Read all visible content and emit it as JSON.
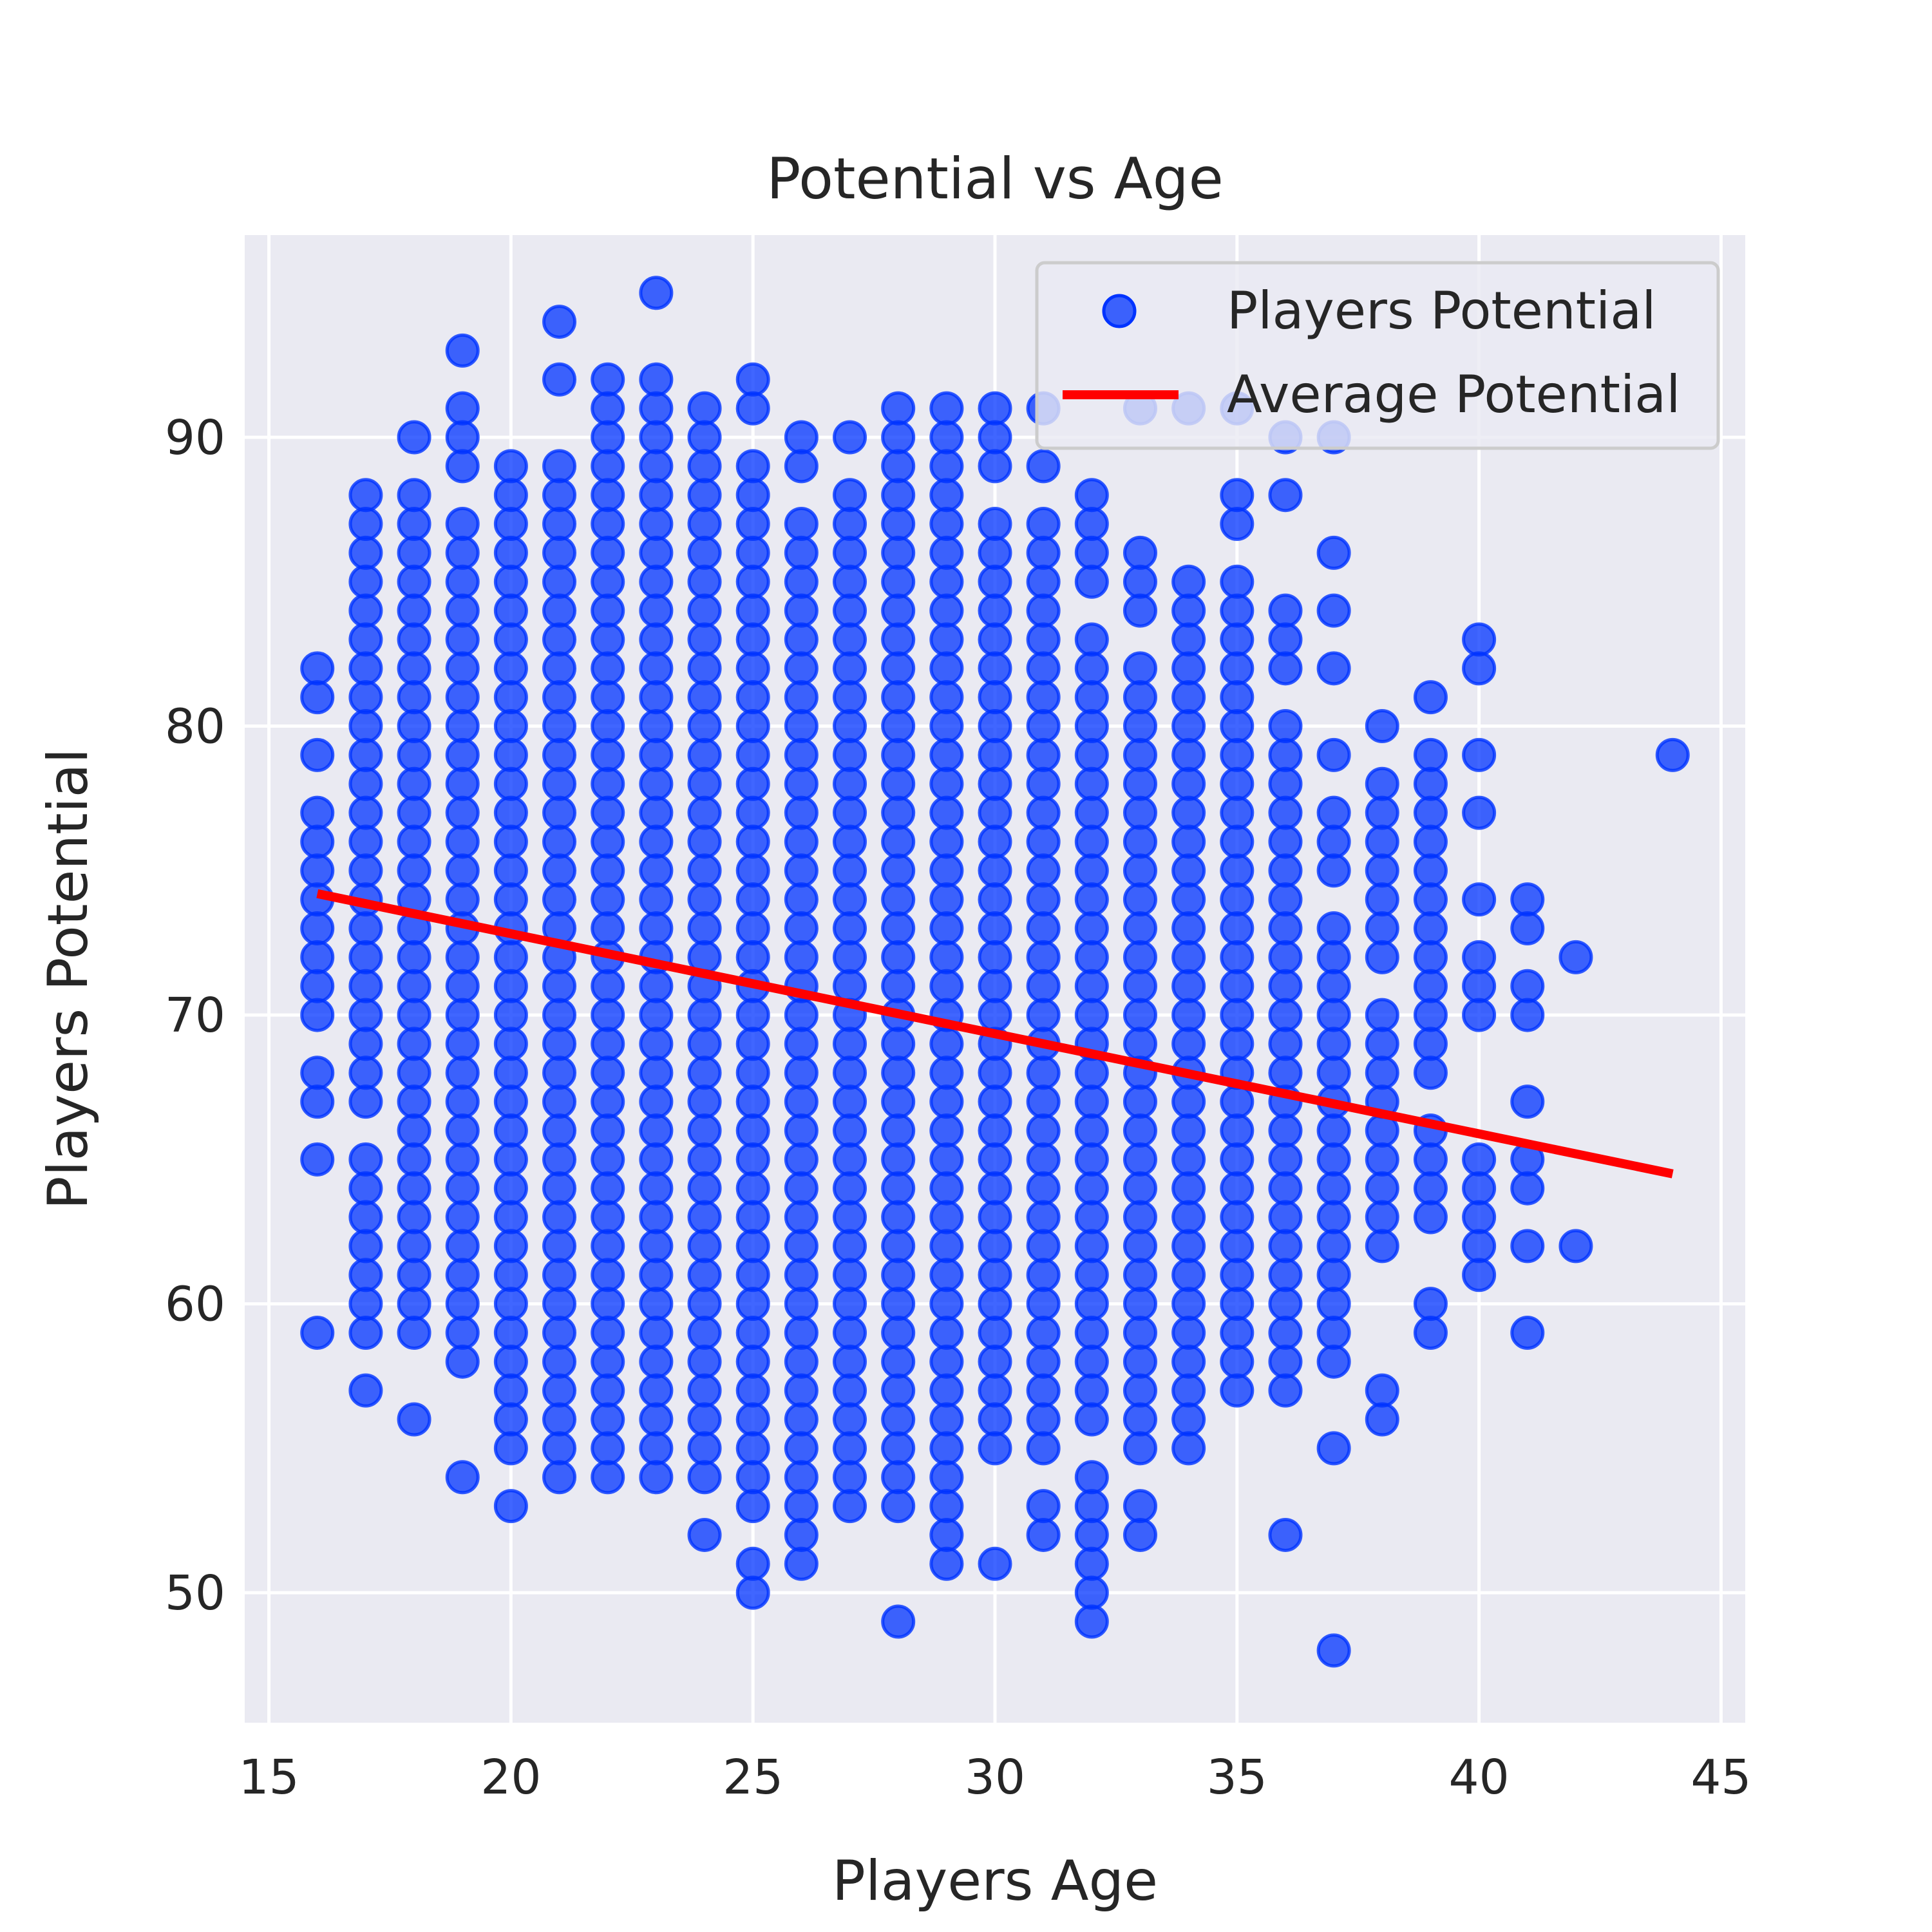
{
  "chart_data": {
    "type": "scatter",
    "title": "Potential vs Age",
    "xlabel": "Players Age",
    "ylabel": "Players Potential",
    "xlim": [
      14.5,
      45.5
    ],
    "ylim": [
      45.5,
      97
    ],
    "xticks": [
      15,
      20,
      25,
      30,
      35,
      40,
      45
    ],
    "yticks": [
      50,
      60,
      70,
      80,
      90
    ],
    "grid": true,
    "legend_position": "top-right",
    "colors": {
      "points": "#0033ff",
      "line": "#ff0000",
      "background": "#eaeaf2",
      "grid": "#ffffff"
    },
    "series": [
      {
        "name": "Players Potential",
        "kind": "scatter",
        "columns": [
          {
            "x": 16,
            "y": [
              59,
              65,
              67,
              68,
              70,
              71,
              72,
              73,
              74,
              75,
              76,
              77,
              79,
              81,
              82
            ]
          },
          {
            "x": 17,
            "y": [
              57,
              59,
              60,
              61,
              62,
              63,
              64,
              65,
              67,
              68,
              69,
              70,
              71,
              72,
              73,
              74,
              75,
              76,
              77,
              78,
              79,
              80,
              81,
              82,
              83,
              84,
              85,
              86,
              87,
              88
            ]
          },
          {
            "x": 18,
            "y": [
              56,
              59,
              60,
              61,
              62,
              63,
              64,
              65,
              66,
              67,
              68,
              69,
              70,
              71,
              72,
              73,
              74,
              75,
              76,
              77,
              78,
              79,
              80,
              81,
              82,
              83,
              84,
              85,
              86,
              87,
              88,
              90
            ]
          },
          {
            "x": 19,
            "y": [
              54,
              58,
              59,
              60,
              61,
              62,
              63,
              64,
              65,
              66,
              67,
              68,
              69,
              70,
              71,
              72,
              73,
              74,
              75,
              76,
              77,
              78,
              79,
              80,
              81,
              82,
              83,
              84,
              85,
              86,
              87,
              89,
              90,
              91,
              93
            ]
          },
          {
            "x": 20,
            "y": [
              53,
              55,
              56,
              57,
              58,
              59,
              60,
              61,
              62,
              63,
              64,
              65,
              66,
              67,
              68,
              69,
              70,
              71,
              72,
              73,
              74,
              75,
              76,
              77,
              78,
              79,
              80,
              81,
              82,
              83,
              84,
              85,
              86,
              87,
              88,
              89
            ]
          },
          {
            "x": 21,
            "y": [
              54,
              55,
              56,
              57,
              58,
              59,
              60,
              61,
              62,
              63,
              64,
              65,
              66,
              67,
              68,
              69,
              70,
              71,
              72,
              73,
              74,
              75,
              76,
              77,
              78,
              79,
              80,
              81,
              82,
              83,
              84,
              85,
              86,
              87,
              88,
              89,
              92,
              94
            ]
          },
          {
            "x": 22,
            "y": [
              54,
              55,
              56,
              57,
              58,
              59,
              60,
              61,
              62,
              63,
              64,
              65,
              66,
              67,
              68,
              69,
              70,
              71,
              72,
              73,
              74,
              75,
              76,
              77,
              78,
              79,
              80,
              81,
              82,
              83,
              84,
              85,
              86,
              87,
              88,
              89,
              90,
              91,
              92
            ]
          },
          {
            "x": 23,
            "y": [
              54,
              55,
              56,
              57,
              58,
              59,
              60,
              61,
              62,
              63,
              64,
              65,
              66,
              67,
              68,
              69,
              70,
              71,
              72,
              73,
              74,
              75,
              76,
              77,
              78,
              79,
              80,
              81,
              82,
              83,
              84,
              85,
              86,
              87,
              88,
              89,
              90,
              91,
              92,
              95
            ]
          },
          {
            "x": 24,
            "y": [
              52,
              54,
              55,
              56,
              57,
              58,
              59,
              60,
              61,
              62,
              63,
              64,
              65,
              66,
              67,
              68,
              69,
              70,
              71,
              72,
              73,
              74,
              75,
              76,
              77,
              78,
              79,
              80,
              81,
              82,
              83,
              84,
              85,
              86,
              87,
              88,
              89,
              90,
              91
            ]
          },
          {
            "x": 25,
            "y": [
              50,
              51,
              53,
              54,
              55,
              56,
              57,
              58,
              59,
              60,
              61,
              62,
              63,
              64,
              65,
              66,
              67,
              68,
              69,
              70,
              71,
              72,
              73,
              74,
              75,
              76,
              77,
              78,
              79,
              80,
              81,
              82,
              83,
              84,
              85,
              86,
              87,
              88,
              89,
              91,
              92
            ]
          },
          {
            "x": 26,
            "y": [
              51,
              52,
              53,
              54,
              55,
              56,
              57,
              58,
              59,
              60,
              61,
              62,
              63,
              64,
              65,
              66,
              67,
              68,
              69,
              70,
              71,
              72,
              73,
              74,
              75,
              76,
              77,
              78,
              79,
              80,
              81,
              82,
              83,
              84,
              85,
              86,
              87,
              89,
              90
            ]
          },
          {
            "x": 27,
            "y": [
              53,
              54,
              55,
              56,
              57,
              58,
              59,
              60,
              61,
              62,
              63,
              64,
              65,
              66,
              67,
              68,
              69,
              70,
              71,
              72,
              73,
              74,
              75,
              76,
              77,
              78,
              79,
              80,
              81,
              82,
              83,
              84,
              85,
              86,
              87,
              88,
              90
            ]
          },
          {
            "x": 28,
            "y": [
              49,
              53,
              54,
              55,
              56,
              57,
              58,
              59,
              60,
              61,
              62,
              63,
              64,
              65,
              66,
              67,
              68,
              69,
              70,
              71,
              72,
              73,
              74,
              75,
              76,
              77,
              78,
              79,
              80,
              81,
              82,
              83,
              84,
              85,
              86,
              87,
              88,
              89,
              90,
              91
            ]
          },
          {
            "x": 29,
            "y": [
              51,
              52,
              53,
              54,
              55,
              56,
              57,
              58,
              59,
              60,
              61,
              62,
              63,
              64,
              65,
              66,
              67,
              68,
              69,
              70,
              71,
              72,
              73,
              74,
              75,
              76,
              77,
              78,
              79,
              80,
              81,
              82,
              83,
              84,
              85,
              86,
              87,
              88,
              89,
              90,
              91
            ]
          },
          {
            "x": 30,
            "y": [
              51,
              55,
              56,
              57,
              58,
              59,
              60,
              61,
              62,
              63,
              64,
              65,
              66,
              67,
              68,
              69,
              70,
              71,
              72,
              73,
              74,
              75,
              76,
              77,
              78,
              79,
              80,
              81,
              82,
              83,
              84,
              85,
              86,
              87,
              89,
              90,
              91
            ]
          },
          {
            "x": 31,
            "y": [
              52,
              53,
              55,
              56,
              57,
              58,
              59,
              60,
              61,
              62,
              63,
              64,
              65,
              66,
              67,
              68,
              69,
              70,
              71,
              72,
              73,
              74,
              75,
              76,
              77,
              78,
              79,
              80,
              81,
              82,
              83,
              84,
              85,
              86,
              87,
              89,
              91
            ]
          },
          {
            "x": 32,
            "y": [
              49,
              50,
              51,
              52,
              53,
              54,
              56,
              57,
              58,
              59,
              60,
              61,
              62,
              63,
              64,
              65,
              66,
              67,
              68,
              69,
              70,
              71,
              72,
              73,
              74,
              75,
              76,
              77,
              78,
              79,
              80,
              81,
              82,
              83,
              85,
              86,
              87,
              88
            ]
          },
          {
            "x": 33,
            "y": [
              52,
              53,
              55,
              56,
              57,
              58,
              59,
              60,
              61,
              62,
              63,
              64,
              65,
              66,
              67,
              68,
              69,
              70,
              71,
              72,
              73,
              74,
              75,
              76,
              77,
              78,
              79,
              80,
              81,
              82,
              84,
              85,
              86,
              91
            ]
          },
          {
            "x": 34,
            "y": [
              55,
              56,
              57,
              58,
              59,
              60,
              61,
              62,
              63,
              64,
              65,
              66,
              67,
              68,
              69,
              70,
              71,
              72,
              73,
              74,
              75,
              76,
              77,
              78,
              79,
              80,
              81,
              82,
              83,
              84,
              85,
              91
            ]
          },
          {
            "x": 35,
            "y": [
              57,
              58,
              59,
              60,
              61,
              62,
              63,
              64,
              65,
              66,
              67,
              68,
              69,
              70,
              71,
              72,
              73,
              74,
              75,
              76,
              77,
              78,
              79,
              80,
              81,
              82,
              83,
              84,
              85,
              87,
              88,
              91
            ]
          },
          {
            "x": 36,
            "y": [
              52,
              57,
              58,
              59,
              60,
              61,
              62,
              63,
              64,
              65,
              66,
              67,
              68,
              69,
              70,
              71,
              72,
              73,
              74,
              75,
              76,
              77,
              78,
              79,
              80,
              82,
              83,
              84,
              88,
              90
            ]
          },
          {
            "x": 37,
            "y": [
              48,
              55,
              58,
              59,
              60,
              61,
              62,
              63,
              64,
              65,
              66,
              67,
              68,
              69,
              70,
              71,
              72,
              73,
              75,
              76,
              77,
              79,
              82,
              84,
              86,
              90
            ]
          },
          {
            "x": 38,
            "y": [
              56,
              57,
              62,
              63,
              64,
              65,
              66,
              67,
              68,
              69,
              70,
              72,
              73,
              74,
              75,
              76,
              77,
              78,
              80
            ]
          },
          {
            "x": 39,
            "y": [
              59,
              60,
              63,
              64,
              65,
              66,
              68,
              69,
              70,
              71,
              72,
              73,
              74,
              75,
              76,
              77,
              78,
              79,
              81
            ]
          },
          {
            "x": 40,
            "y": [
              61,
              62,
              63,
              64,
              65,
              70,
              71,
              72,
              74,
              77,
              79,
              82,
              83
            ]
          },
          {
            "x": 41,
            "y": [
              59,
              62,
              64,
              65,
              67,
              70,
              71,
              73,
              74
            ]
          },
          {
            "x": 42,
            "y": [
              62,
              72
            ]
          },
          {
            "x": 44,
            "y": [
              79
            ]
          }
        ]
      },
      {
        "name": "Average Potential",
        "kind": "line",
        "x": [
          16,
          44
        ],
        "y": [
          74.2,
          64.5
        ]
      }
    ]
  }
}
